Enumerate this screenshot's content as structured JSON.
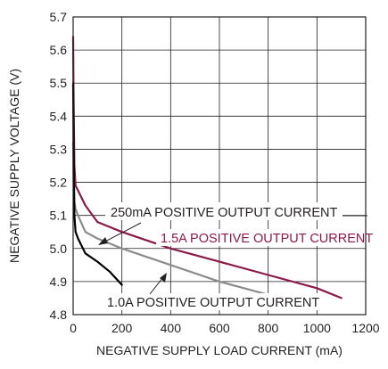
{
  "chart_data": {
    "type": "line",
    "xlabel": "NEGATIVE SUPPLY LOAD CURRENT (mA)",
    "ylabel": "NEGATIVE SUPPLY VOLTAGE (V)",
    "xlim": [
      0,
      1200
    ],
    "ylim": [
      4.8,
      5.7
    ],
    "x_ticks": [
      "0",
      "200",
      "400",
      "600",
      "800",
      "1000",
      "1200"
    ],
    "y_ticks": [
      "4.8",
      "4.9",
      "5.0",
      "5.1",
      "5.2",
      "5.3",
      "5.4",
      "5.5",
      "5.6",
      "5.7"
    ],
    "grid": true,
    "series": [
      {
        "name": "1.5A POSITIVE OUTPUT CURRENT",
        "color": "#8b1a4a",
        "x": [
          0,
          2,
          5,
          10,
          20,
          50,
          100,
          200,
          400,
          600,
          800,
          1000,
          1100
        ],
        "y": [
          5.64,
          5.45,
          5.25,
          5.19,
          5.175,
          5.13,
          5.08,
          5.05,
          5.0,
          4.96,
          4.92,
          4.88,
          4.85
        ]
      },
      {
        "name": "250mA POSITIVE OUTPUT CURRENT",
        "color": "#8c8c8c",
        "x": [
          0,
          2,
          5,
          10,
          20,
          50,
          100,
          200,
          400,
          600,
          800
        ],
        "y": [
          5.32,
          5.2,
          5.14,
          5.12,
          5.1,
          5.05,
          5.03,
          5.0,
          4.95,
          4.9,
          4.86
        ]
      },
      {
        "name": "1.0A POSITIVE OUTPUT CURRENT",
        "color": "#000000",
        "x": [
          0,
          2,
          5,
          10,
          20,
          50,
          100,
          150,
          200
        ],
        "y": [
          5.5,
          5.3,
          5.1,
          5.05,
          5.03,
          4.985,
          4.96,
          4.93,
          4.89
        ]
      }
    ],
    "annotations": [
      {
        "text": "250mA POSITIVE OUTPUT CURRENT",
        "color": "#231f20"
      },
      {
        "text": "1.5A POSITIVE OUTPUT CURRENT",
        "color": "#8b1a4a"
      },
      {
        "text": "1.0A POSITIVE OUTPUT CURRENT",
        "color": "#231f20"
      }
    ]
  }
}
